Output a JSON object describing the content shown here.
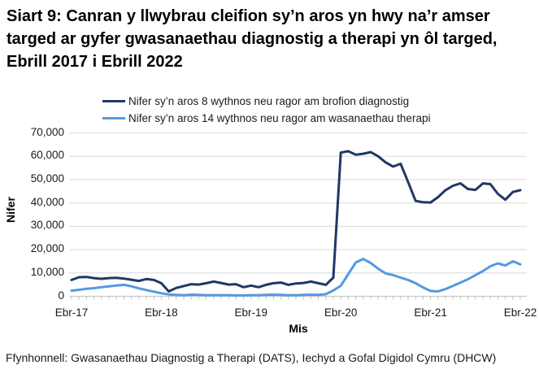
{
  "title": "Siart 9: Canran y llwybrau cleifion sy’n aros yn hwy na’r amser targed ar gyfer gwasanaethau diagnostig a therapi yn ôl targed, Ebrill 2017 i Ebrill 2022",
  "source": {
    "text": "Ffynhonnell: Gwasanaethau Diagnostig a Therapi (DATS), Iechyd a Gofal Digidol Cymru (DHCW)"
  },
  "chart_data": {
    "type": "line",
    "xlabel": "Mis",
    "ylabel": "Nifer",
    "ylim": [
      0,
      70000
    ],
    "y_ticks": [
      0,
      10000,
      20000,
      30000,
      40000,
      50000,
      60000,
      70000
    ],
    "y_tick_labels": [
      "0",
      "10,000",
      "20,000",
      "30,000",
      "40,000",
      "50,000",
      "60,000",
      "70,000"
    ],
    "x_tick_labels": [
      "Ebr-17",
      "Ebr-18",
      "Ebr-19",
      "Ebr-20",
      "Ebr-21",
      "Ebr-22"
    ],
    "x_tick_month_index": [
      0,
      12,
      24,
      36,
      48,
      60
    ],
    "x_start": "Ebr-17",
    "x_end": "Ebr-22",
    "x_interval_months": 1,
    "points_per_series": 61,
    "grid": "horizontal",
    "legend_position": "top",
    "colors": {
      "grid": "#D9D9D9",
      "axis": "#C9C9C9",
      "tick": "#BFBFBF"
    },
    "series": [
      {
        "name": "Nifer sy’n aros 8 wythnos neu ragor am brofion diagnostig",
        "color": "#1F3864",
        "values": [
          7000,
          8200,
          8300,
          7800,
          7500,
          7800,
          7900,
          7600,
          7100,
          6600,
          7400,
          7000,
          5600,
          2100,
          3600,
          4400,
          5200,
          5000,
          5600,
          6300,
          5700,
          5000,
          5200,
          3900,
          4600,
          3900,
          4900,
          5600,
          5900,
          4900,
          5500,
          5700,
          6300,
          5600,
          4900,
          8000,
          61600,
          62200,
          60700,
          61100,
          61800,
          60000,
          57400,
          55600,
          56800,
          49000,
          40900,
          40300,
          40200,
          42500,
          45500,
          47400,
          48400,
          46000,
          45600,
          48400,
          48100,
          43900,
          41400,
          44700,
          45500
        ]
      },
      {
        "name": "Nifer sy’n aros 14 wythnos neu ragor am wasanaethau therapi",
        "color": "#5599E0",
        "values": [
          2400,
          2800,
          3200,
          3500,
          3900,
          4300,
          4600,
          4900,
          4300,
          3400,
          2700,
          2000,
          1300,
          800,
          600,
          500,
          700,
          600,
          500,
          500,
          500,
          500,
          400,
          400,
          500,
          500,
          600,
          700,
          600,
          500,
          500,
          600,
          700,
          600,
          900,
          2500,
          4500,
          9500,
          14500,
          16000,
          14300,
          11800,
          9800,
          9100,
          8000,
          7000,
          5600,
          3800,
          2300,
          2100,
          3100,
          4500,
          5900,
          7300,
          9100,
          10800,
          12900,
          14100,
          13200,
          15000,
          13700
        ]
      }
    ]
  }
}
